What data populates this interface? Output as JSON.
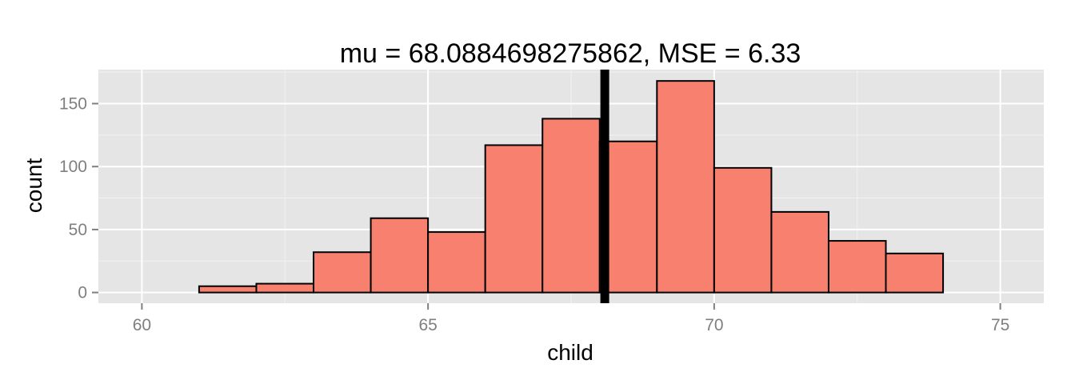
{
  "chart_data": {
    "type": "bar",
    "title": "mu = 68.0884698275862, MSE = 6.33",
    "xlabel": "child",
    "ylabel": "count",
    "xlim": [
      59.24,
      75.76
    ],
    "ylim": [
      -8.5,
      177
    ],
    "x_ticks": [
      60,
      65,
      70,
      75
    ],
    "x_tick_labels": [
      "60",
      "65",
      "70",
      "75"
    ],
    "y_ticks": [
      0,
      50,
      100,
      150
    ],
    "y_tick_labels": [
      "0",
      "50",
      "100",
      "150"
    ],
    "grid": true,
    "bin_width": 1,
    "bins": [
      {
        "x0": 60,
        "x1": 61,
        "count": 0
      },
      {
        "x0": 61,
        "x1": 62,
        "count": 5
      },
      {
        "x0": 62,
        "x1": 63,
        "count": 7
      },
      {
        "x0": 63,
        "x1": 64,
        "count": 32
      },
      {
        "x0": 64,
        "x1": 65,
        "count": 59
      },
      {
        "x0": 65,
        "x1": 66,
        "count": 48
      },
      {
        "x0": 66,
        "x1": 67,
        "count": 117
      },
      {
        "x0": 67,
        "x1": 68,
        "count": 138
      },
      {
        "x0": 68,
        "x1": 69,
        "count": 120
      },
      {
        "x0": 69,
        "x1": 70,
        "count": 168
      },
      {
        "x0": 70,
        "x1": 71,
        "count": 99
      },
      {
        "x0": 71,
        "x1": 72,
        "count": 64
      },
      {
        "x0": 72,
        "x1": 73,
        "count": 41
      },
      {
        "x0": 73,
        "x1": 74,
        "count": 31
      },
      {
        "x0": 74,
        "x1": 75,
        "count": 0
      }
    ],
    "vline_x": 68.0884698275862,
    "colors": {
      "panel": "#e5e5e5",
      "grid_major": "#ffffff",
      "grid_minor": "#f2f2f2",
      "bar_fill": "#f8806f",
      "bar_stroke": "#000000",
      "vline": "#000000",
      "tick_text": "#7f7f7f"
    }
  }
}
